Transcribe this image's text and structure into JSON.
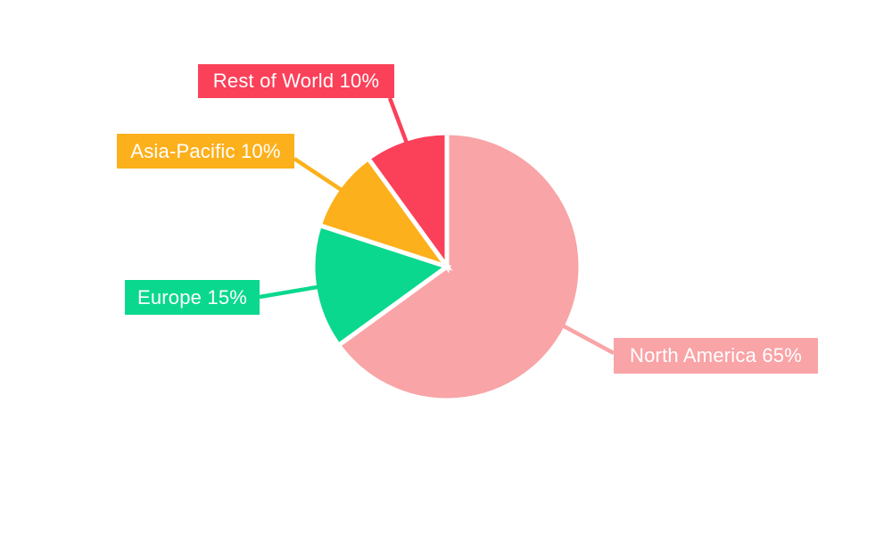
{
  "page": {
    "background": "#FFFFFF"
  },
  "chart_data": {
    "type": "pie",
    "title": "",
    "categories": [
      "North America",
      "Europe",
      "Asia-Pacific",
      "Rest of World"
    ],
    "values": [
      65,
      15,
      10,
      10
    ],
    "unit": "%",
    "total": 100,
    "slices": [
      {
        "name": "North America",
        "value": 65,
        "label": "North America 65%",
        "color": "#F9A4A7"
      },
      {
        "name": "Europe",
        "value": 15,
        "label": "Europe 15%",
        "color": "#0AD88E"
      },
      {
        "name": "Asia-Pacific",
        "value": 10,
        "label": "Asia-Pacific 10%",
        "color": "#FCB01C"
      },
      {
        "name": "Rest of World",
        "value": 10,
        "label": "Rest of World 10%",
        "color": "#FB4059"
      }
    ],
    "start_at": "top",
    "direction": "clockwise",
    "legend": "none",
    "label_style": "colored callout boxes with leader lines",
    "label_text_color": "#FFFFFF",
    "separator_color": "#FFFFFF"
  }
}
